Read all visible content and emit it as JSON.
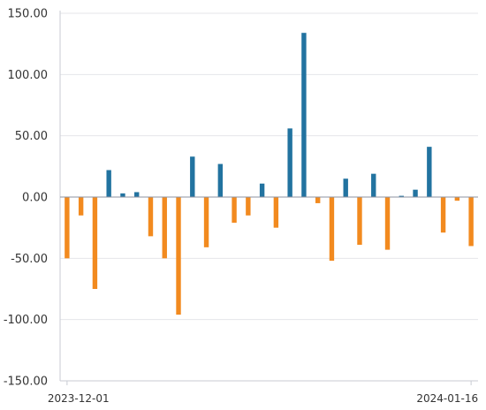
{
  "chart_data": {
    "type": "bar",
    "title": "",
    "xlabel": "",
    "ylabel": "",
    "ylim": [
      -150,
      150
    ],
    "yticks": [
      150,
      100,
      50,
      0,
      -50,
      -100,
      -150
    ],
    "ytick_labels": [
      "150.00",
      "100.00",
      "50.00",
      "0.00",
      "-50.00",
      "-100.00",
      "-150.00"
    ],
    "x_tick_labels": [
      "2023-12-01",
      "2024-01-16"
    ],
    "grid": true,
    "legend": "none",
    "colors": {
      "positive": "#2273a0",
      "negative": "#f28a1f"
    },
    "values": [
      -50,
      -15,
      -75,
      22,
      3,
      4,
      -32,
      -50,
      -96,
      33,
      -41,
      27,
      -21,
      -15,
      11,
      -25,
      56,
      134,
      -5,
      -52,
      15,
      -39,
      19,
      -43,
      1,
      6,
      41,
      -29,
      -3,
      -40
    ]
  }
}
